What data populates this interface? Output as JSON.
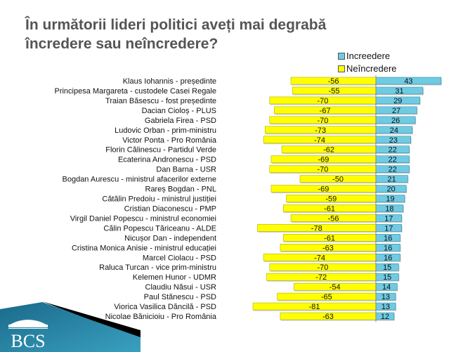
{
  "title_line1": "În următorii lideri politici aveți mai degrabă",
  "title_line2": "încredere sau neîncredere?",
  "logo_text": "BCS",
  "colors": {
    "trust": "#6fcbe2",
    "distrust": "#ffff00"
  },
  "chart_data": {
    "type": "bar",
    "orientation": "horizontal-diverging",
    "title": "În următorii lideri politici aveți mai degrabă încredere sau neîncredere?",
    "legend": [
      "Increedere",
      "Neîncredere"
    ],
    "legend_position": "top-right",
    "categories": [
      "Klaus Iohannis - președinte",
      "Principesa Margareta - custodele Casei Regale",
      "Traian Băsescu - fost președinte",
      "Dacian Cioloș - PLUS",
      "Gabriela Firea - PSD",
      "Ludovic Orban - prim-ministru",
      "Victor Ponta - Pro România",
      "Florin Călinescu - Partidul Verde",
      "Ecaterina Andronescu - PSD",
      "Dan Barna - USR",
      "Bogdan Aurescu - ministrul afacerilor externe",
      "Rareș Bogdan - PNL",
      "Cătălin Predoiu - ministrul justiției",
      "Cristian Diaconescu - PMP",
      "Virgil Daniel Popescu - ministrul economiei",
      "Călin Popescu Tăriceanu - ALDE",
      "Nicușor Dan - independent",
      "Cristina Monica Anisie - ministrul educației",
      "Marcel Ciolacu - PSD",
      "Raluca Turcan - vice prim-ministru",
      "Kelemen Hunor - UDMR",
      "Claudiu Năsui - USR",
      "Paul Stănescu - PSD",
      "Viorica Vasilica Dăncilă - PSD",
      "Nicolae Bănicioiu - Pro România"
    ],
    "series": [
      {
        "name": "Incredere",
        "values": [
          43,
          31,
          29,
          27,
          26,
          24,
          23,
          22,
          22,
          22,
          21,
          20,
          19,
          18,
          17,
          17,
          16,
          16,
          16,
          15,
          15,
          14,
          13,
          13,
          12
        ]
      },
      {
        "name": "Neîncredere",
        "values": [
          -56,
          -55,
          -70,
          -67,
          -70,
          -73,
          -74,
          -62,
          -69,
          -70,
          -50,
          -69,
          -59,
          -61,
          -56,
          -78,
          -61,
          -63,
          -74,
          -70,
          -72,
          -54,
          -65,
          -81,
          -63
        ]
      }
    ],
    "xlim": [
      -85,
      45
    ]
  }
}
